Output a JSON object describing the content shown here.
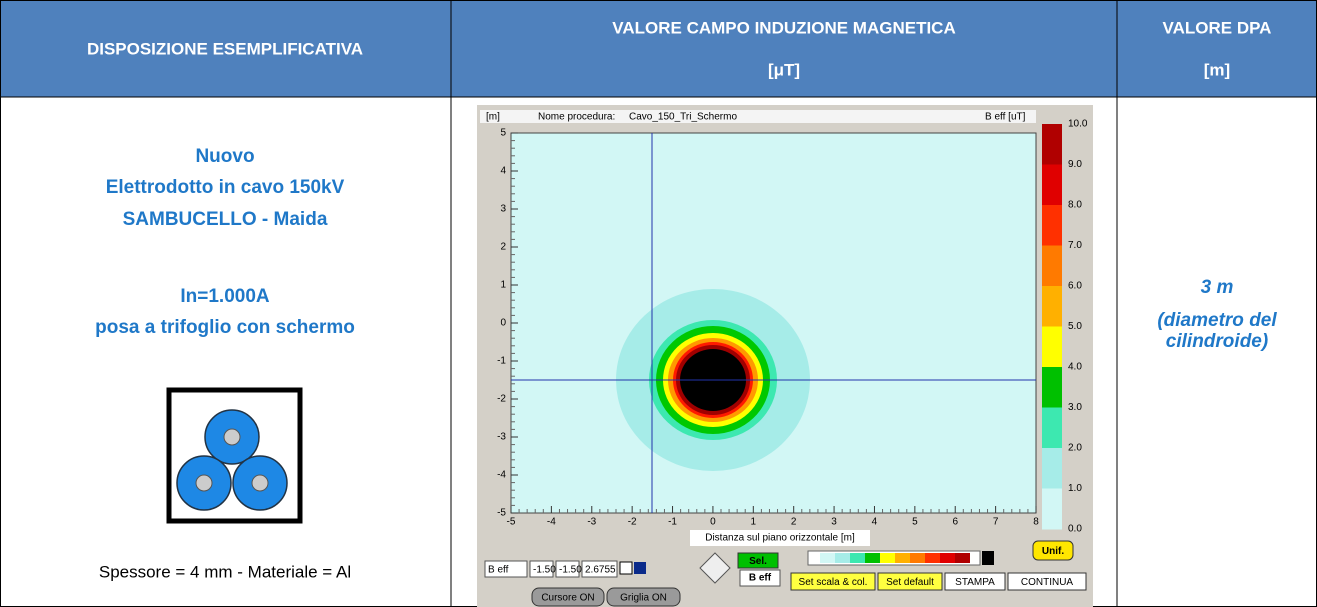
{
  "table": {
    "headers": [
      [
        "DISPOSIZIONE ESEMPLIFICATIVA"
      ],
      [
        "VALORE CAMPO INDUZIONE MAGNETICA",
        "[μT]"
      ],
      [
        "VALORE DPA",
        "[m]"
      ]
    ],
    "left": {
      "lines": [
        "Nuovo",
        "Elettrodotto in cavo 150kV",
        "SAMBUCELLO - Maida",
        "In=1.000A",
        "posa a trifoglio con schermo"
      ],
      "caption": "Spessore = 4 mm - Materiale = Al"
    },
    "right": {
      "value": "3 m",
      "note": [
        "(diametro del",
        "cilindroide)"
      ]
    }
  },
  "software": {
    "y_unit": "[m]",
    "procedure_label": "Nome procedura:",
    "procedure_name": "Cavo_150_Tri_Schermo",
    "scale_unit": "B eff [uT]",
    "x_ticks": [
      "-5",
      "-4",
      "-3",
      "-2",
      "-1",
      "0",
      "1",
      "2",
      "3",
      "4",
      "5",
      "6",
      "7",
      "8"
    ],
    "y_ticks": [
      "5",
      "4",
      "3",
      "2",
      "1",
      "0",
      "-1",
      "-2",
      "-3",
      "-4",
      "-5"
    ],
    "scale_ticks": [
      "10.0",
      "9.0",
      "8.0",
      "7.0",
      "6.0",
      "5.0",
      "4.0",
      "3.0",
      "2.0",
      "1.0",
      "0.0"
    ],
    "x_axis_label": "Distanza sul piano orizzontale [m]",
    "unif_button": "Unif.",
    "cursor_fields": [
      "B eff",
      "-1.50",
      "-1.50",
      "2.6755"
    ],
    "sel_button": "Sel.",
    "sel_value": "B eff",
    "buttons": [
      "Set scala & col.",
      "Set default",
      "STAMPA",
      "CONTINUA"
    ],
    "toggles": [
      "Cursore ON",
      "Griglia ON"
    ]
  }
}
